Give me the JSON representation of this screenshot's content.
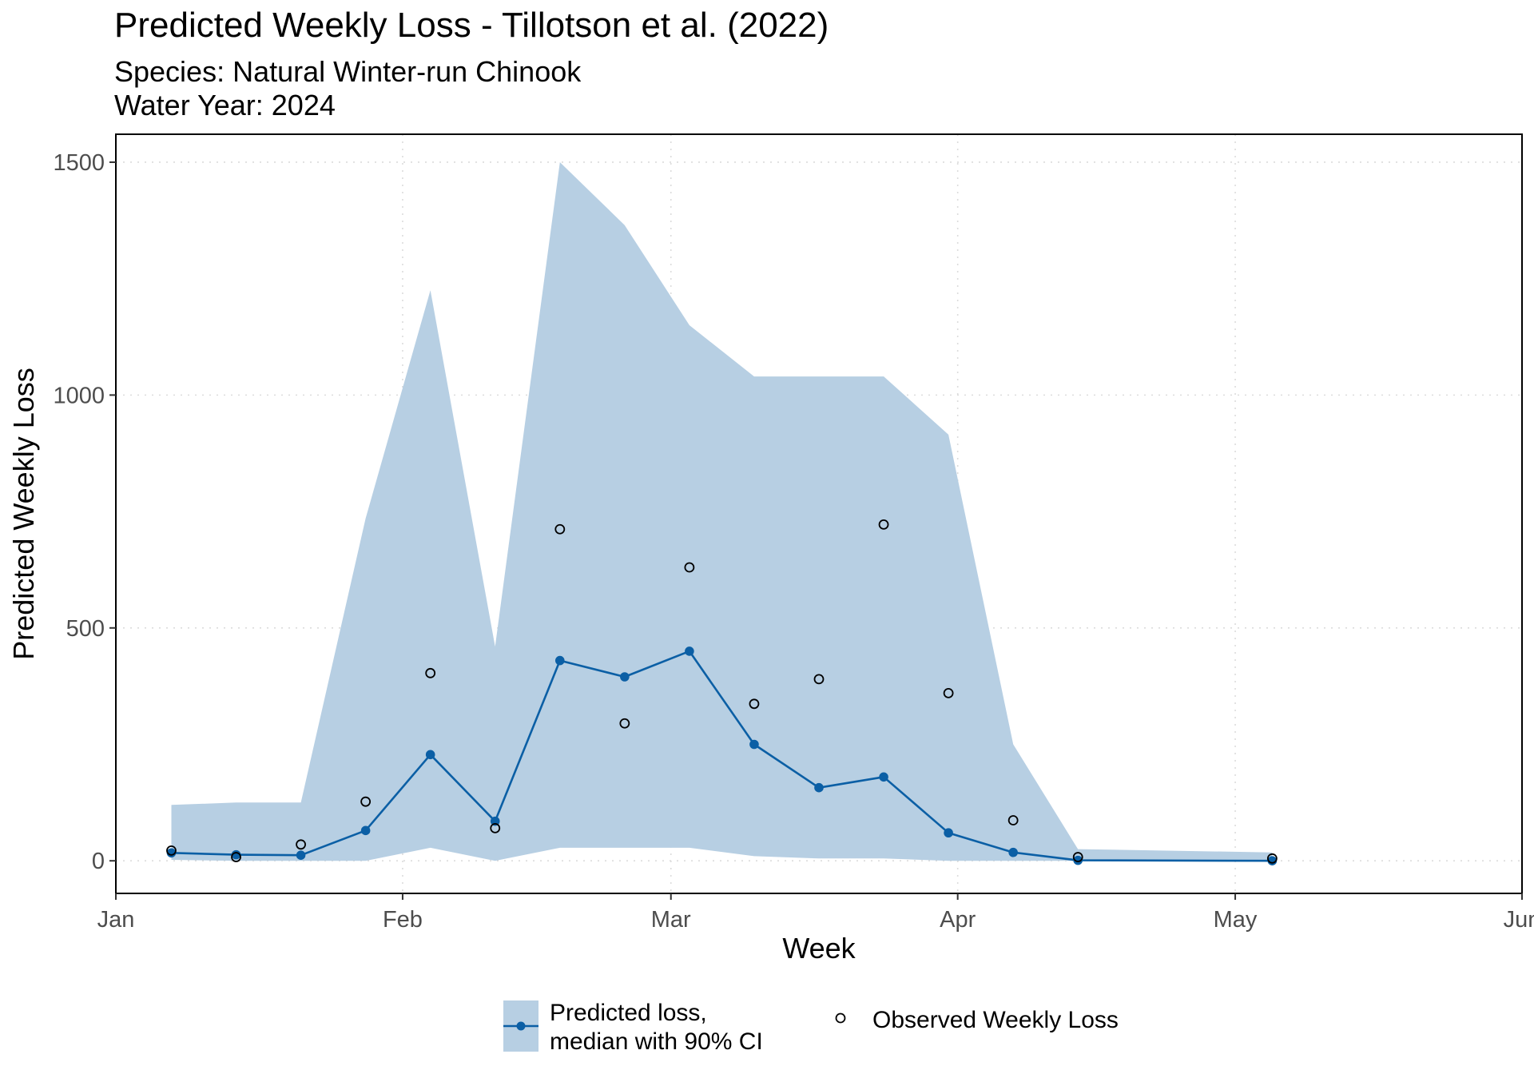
{
  "chart_data": {
    "type": "line",
    "title": "Predicted Weekly Loss - Tillotson et al. (2022)",
    "subtitle_lines": [
      "Species: Natural Winter-run Chinook",
      "Water Year: 2024"
    ],
    "xlabel": "Week",
    "ylabel": "Predicted Weekly Loss",
    "x_tick_labels": [
      "Jan",
      "Feb",
      "Mar",
      "Apr",
      "May",
      "Jun"
    ],
    "x_range": [
      "2024-01-01",
      "2024-06-01"
    ],
    "y_ticks": [
      0,
      500,
      1000,
      1500
    ],
    "y_tick_labels": [
      "0",
      "500",
      "1000",
      "1500"
    ],
    "ylim": [
      -70,
      1560
    ],
    "grid": "dotted major",
    "legend_position": "bottom",
    "colors": {
      "line": "#0b5fa5",
      "band": "#b7cfe3",
      "observed": "#000000"
    },
    "series": [
      {
        "name": "Predicted loss,\nmedian with 90% CI",
        "legend_lines": [
          "Predicted loss,",
          "median with 90% CI"
        ],
        "kind": "median-with-ci",
        "x": [
          "2024-01-07",
          "2024-01-14",
          "2024-01-21",
          "2024-01-28",
          "2024-02-04",
          "2024-02-11",
          "2024-02-18",
          "2024-02-25",
          "2024-03-03",
          "2024-03-10",
          "2024-03-17",
          "2024-03-24",
          "2024-03-31",
          "2024-04-07",
          "2024-04-14",
          "2024-05-05"
        ],
        "median": [
          17,
          13,
          12,
          65,
          228,
          85,
          430,
          395,
          450,
          250,
          157,
          180,
          60,
          18,
          1,
          0
        ],
        "lower": [
          2,
          0,
          0,
          0,
          28,
          0,
          28,
          28,
          28,
          10,
          5,
          5,
          0,
          0,
          0,
          0
        ],
        "upper": [
          120,
          125,
          125,
          735,
          1225,
          460,
          1500,
          1365,
          1150,
          1040,
          1040,
          1040,
          915,
          250,
          25,
          18
        ]
      },
      {
        "name": "Observed Weekly Loss",
        "legend_lines": [
          "Observed Weekly Loss"
        ],
        "kind": "points",
        "x": [
          "2024-01-07",
          "2024-01-14",
          "2024-01-21",
          "2024-01-28",
          "2024-02-04",
          "2024-02-11",
          "2024-02-18",
          "2024-02-25",
          "2024-03-03",
          "2024-03-10",
          "2024-03-17",
          "2024-03-24",
          "2024-03-31",
          "2024-04-07",
          "2024-04-14",
          "2024-05-05"
        ],
        "values": [
          22,
          8,
          35,
          127,
          403,
          70,
          712,
          295,
          630,
          337,
          390,
          722,
          360,
          87,
          8,
          5
        ]
      }
    ]
  }
}
